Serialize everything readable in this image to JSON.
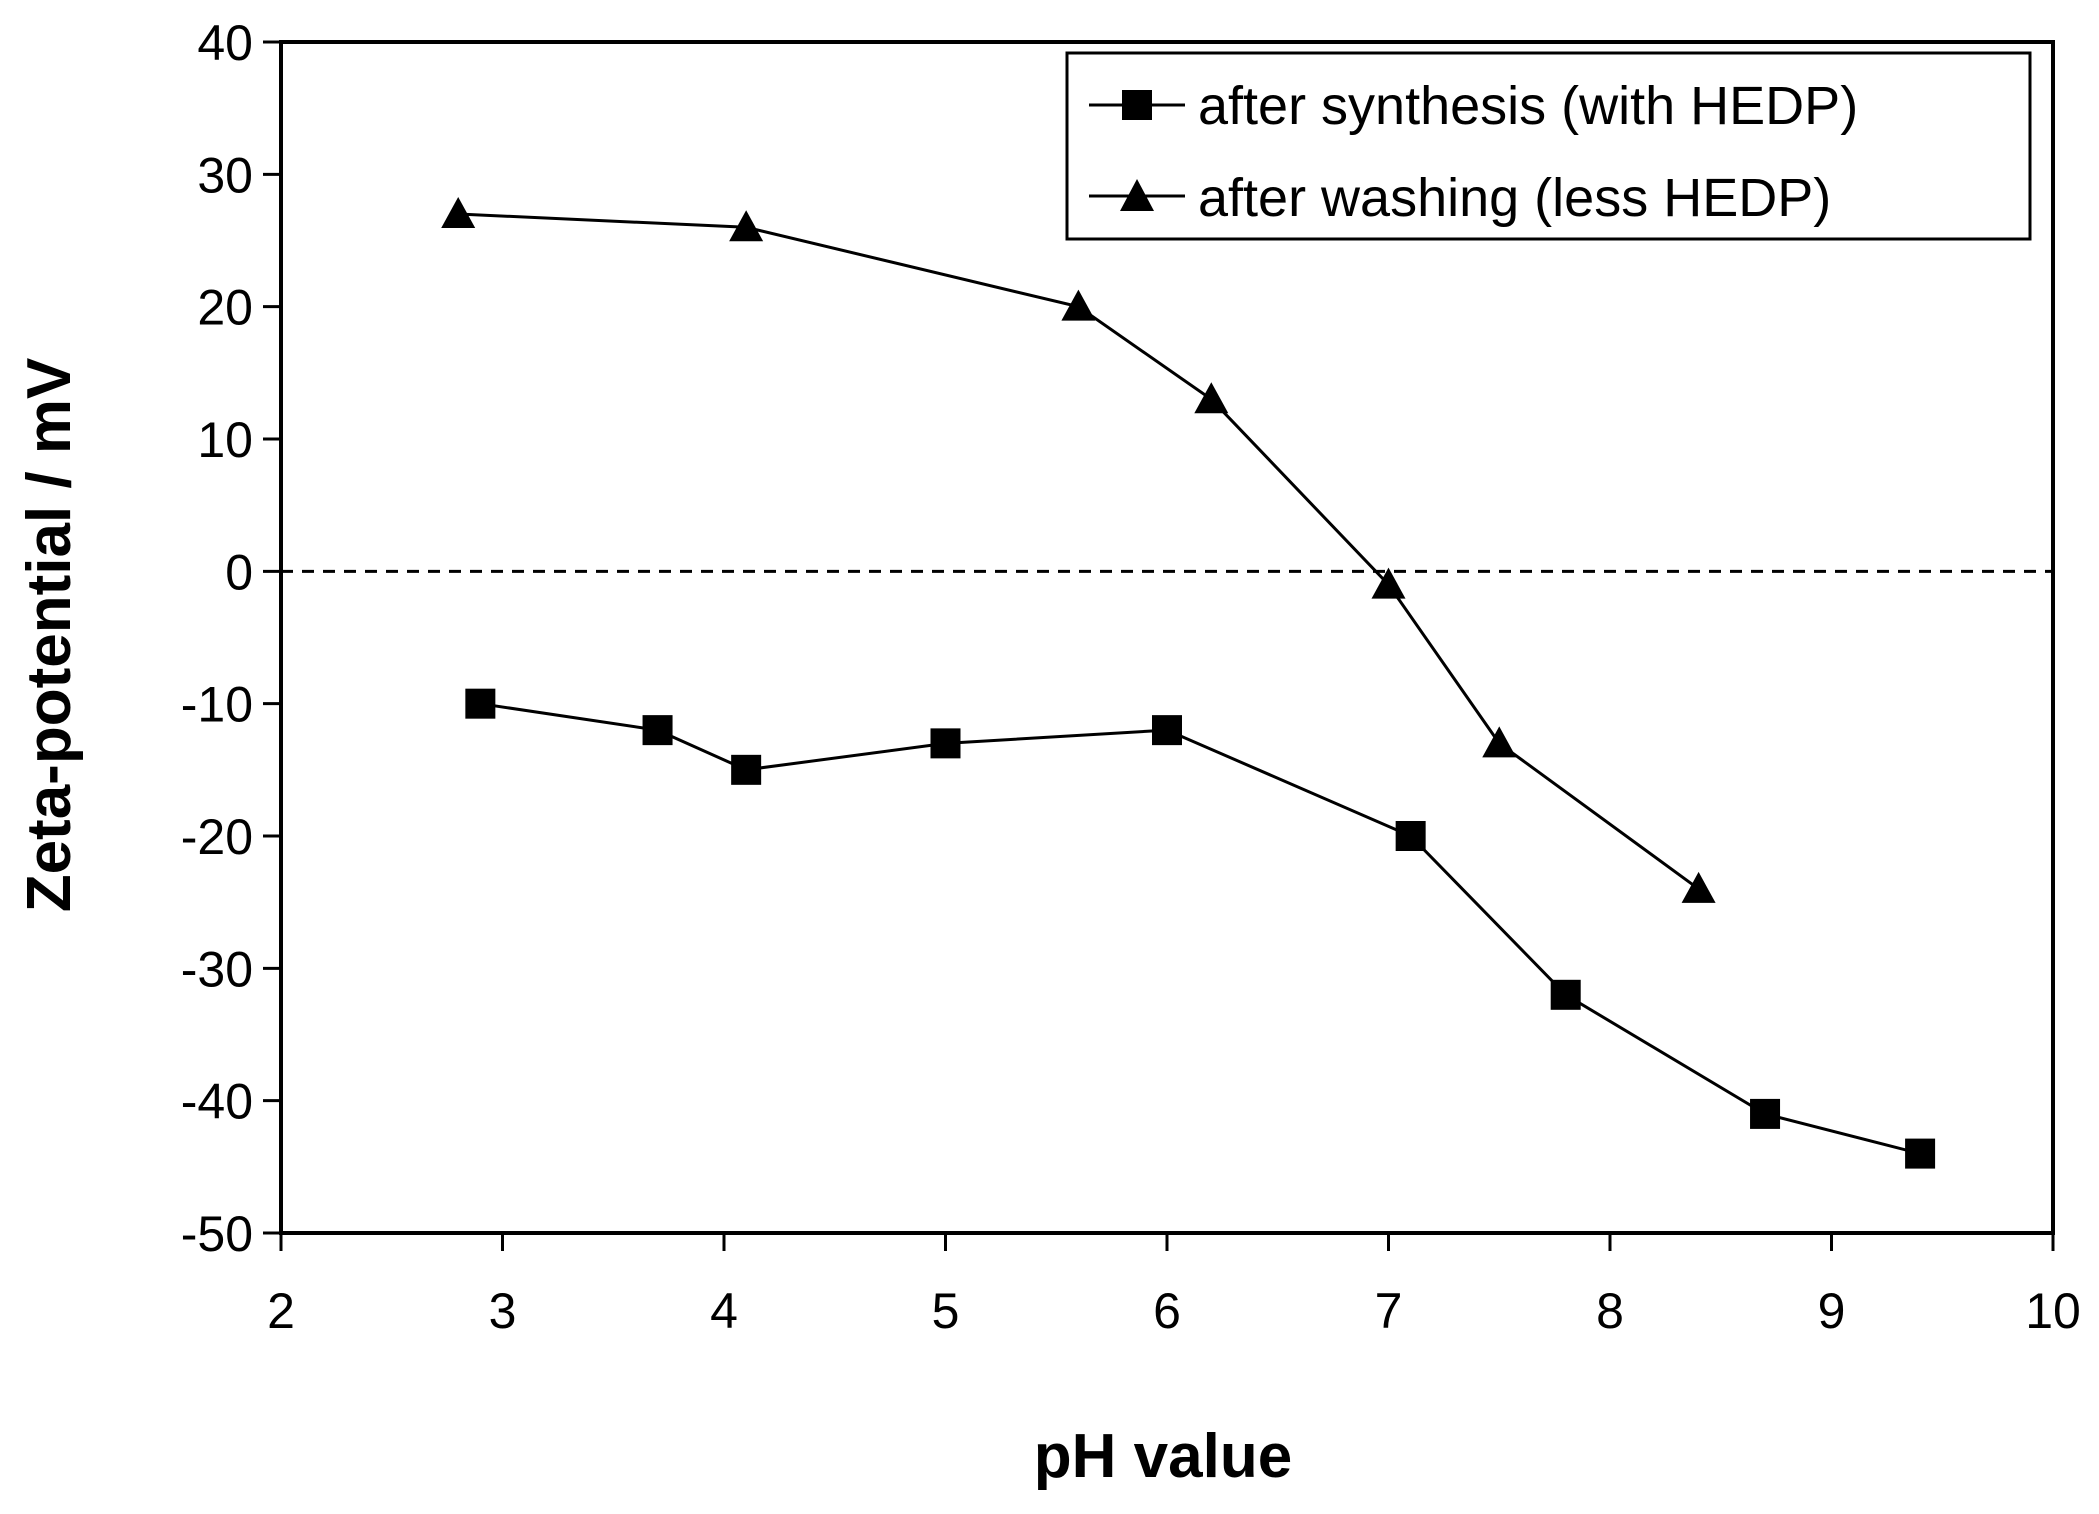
{
  "chart_data": {
    "type": "line",
    "title": "",
    "xlabel": "pH value",
    "ylabel": "Zeta-potential / mV",
    "xlim": [
      2,
      10
    ],
    "ylim": [
      -50,
      40
    ],
    "xticks": [
      2,
      3,
      4,
      5,
      6,
      7,
      8,
      9,
      10
    ],
    "yticks": [
      40,
      30,
      20,
      10,
      0,
      -10,
      -20,
      -30,
      -40,
      -50
    ],
    "grid": false,
    "legend_position": "top-right",
    "reference_line": {
      "y": 0,
      "style": "dashed"
    },
    "series": [
      {
        "name": "after synthesis (with HEDP)",
        "marker": "square",
        "x": [
          2.9,
          3.7,
          4.1,
          5.0,
          6.0,
          7.1,
          7.8,
          8.7,
          9.4
        ],
        "y": [
          -10,
          -12,
          -15,
          -13,
          -12,
          -20,
          -32,
          -41,
          -44
        ]
      },
      {
        "name": "after washing (less HEDP)",
        "marker": "triangle",
        "x": [
          2.8,
          4.1,
          5.6,
          6.2,
          7.0,
          7.5,
          8.4
        ],
        "y": [
          27,
          26,
          20,
          13,
          -1,
          -13,
          -24
        ]
      }
    ]
  }
}
